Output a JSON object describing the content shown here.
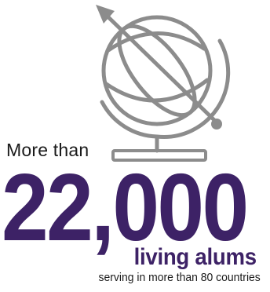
{
  "intro": "More than",
  "count": "22,000",
  "subhead": "living alums",
  "caption": "serving in more than 80 countries",
  "colors": {
    "brand_purple": "#3d2266",
    "globe_gray": "#8c8c8c",
    "text_dark": "#1a1a1a"
  },
  "icon": "globe-icon"
}
